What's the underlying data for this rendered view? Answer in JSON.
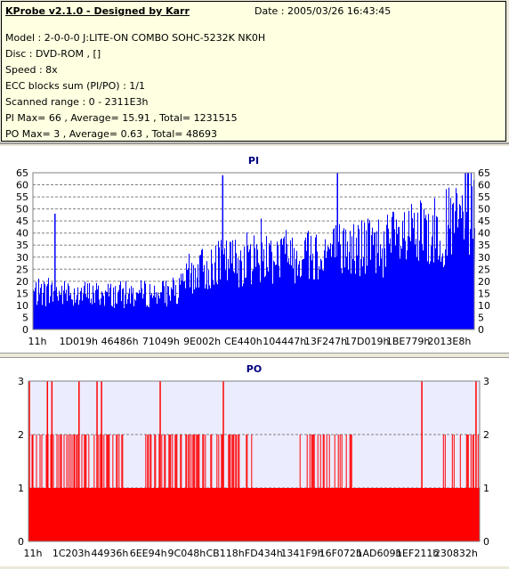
{
  "header": {
    "title": "KProbe v2.1.0 - Designed by Karr",
    "date": "Date : 2005/03/26 16:43:45",
    "lines": [
      "Model : 2-0-0-0 J:LITE-ON COMBO SOHC-5232K NK0H",
      "Disc : DVD-ROM ,  []",
      "Speed : 8x",
      "ECC blocks sum (PI/PO) : 1/1",
      "Scanned range : 0 - 2311E3h",
      "PI Max= 66 , Average= 15.91 , Total= 1231515",
      "PO Max= 3 , Average= 0.63 , Total= 48693"
    ]
  },
  "chart_data": [
    {
      "type": "area",
      "title": "PI",
      "color": "#0000ff",
      "ylim": [
        0,
        65
      ],
      "yticks": [
        "0",
        "5",
        "10",
        "15",
        "20",
        "25",
        "30",
        "35",
        "40",
        "45",
        "50",
        "55",
        "60",
        "65"
      ],
      "xticks": [
        "11h",
        "1D019h",
        "46486h",
        "71049h",
        "9E002h",
        "CE440h",
        "104447h",
        "13F247h",
        "17D019h",
        "1BE779h",
        "2013E8h"
      ],
      "grid": true,
      "series": [
        {
          "profile": [
            [
              0,
              17
            ],
            [
              0.18,
              16
            ],
            [
              0.33,
              17
            ],
            [
              0.35,
              25
            ],
            [
              0.42,
              30
            ],
            [
              0.52,
              34
            ],
            [
              0.62,
              35
            ],
            [
              0.72,
              37
            ],
            [
              0.82,
              40
            ],
            [
              0.9,
              44
            ],
            [
              0.95,
              48
            ],
            [
              1.0,
              54
            ]
          ],
          "spikes": [
            [
              0.05,
              48
            ],
            [
              0.43,
              64
            ],
            [
              0.69,
              65
            ],
            [
              0.98,
              65
            ]
          ]
        }
      ]
    },
    {
      "type": "area",
      "title": "PO",
      "color": "#ff0000",
      "ylim": [
        0,
        3
      ],
      "yticks": [
        "0",
        "1",
        "2",
        "3"
      ],
      "xticks": [
        "11h",
        "1C203h",
        "44936h",
        "6EE94h",
        "9C048h",
        "CB118h",
        "FD434h",
        "1341F9h",
        "16F072h",
        "1AD609h",
        "1EF211h",
        "230832h"
      ],
      "grid": true,
      "series": [
        {
          "baseline": 1,
          "level2_zones": [
            [
              0,
              0.12
            ],
            [
              0.12,
              0.21
            ],
            [
              0.26,
              0.5
            ],
            [
              0.6,
              0.72
            ],
            [
              0.9,
              1.0
            ]
          ],
          "level3_positions": [
            0.0,
            0.04,
            0.05,
            0.11,
            0.15,
            0.16,
            0.29,
            0.43,
            0.87,
            0.99
          ]
        }
      ]
    }
  ]
}
